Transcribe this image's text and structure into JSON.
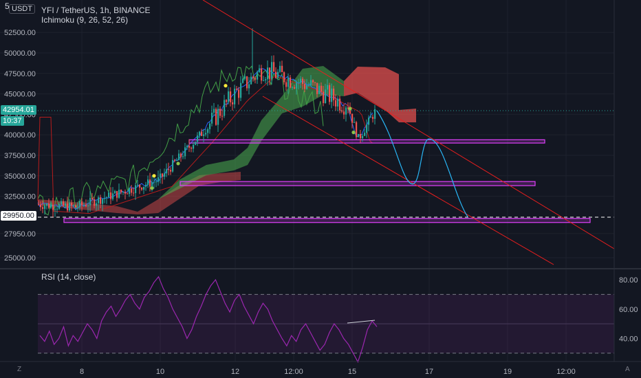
{
  "header": {
    "currency_button": "USDT",
    "symbol_title": "YFI / TetherUS, 1h, BINANCE",
    "indicator": "Ichimoku (9, 26, 52, 26)",
    "price_scale_top": "5"
  },
  "rsi": {
    "title": "RSI (14, close)",
    "levels": [
      "80.00",
      "60.00",
      "40.00"
    ],
    "upper_band": 70,
    "lower_band": 30
  },
  "price_axis": {
    "ticks": [
      "52500.00",
      "50000.00",
      "47500.00",
      "45000.00",
      "42500.00",
      "40000.00",
      "37500.00",
      "35000.00",
      "32500.00",
      "27950.00",
      "25000.00"
    ]
  },
  "time_axis": {
    "ticks": [
      "8",
      "10",
      "12",
      "12:00",
      "15",
      "17",
      "19",
      "12:00"
    ]
  },
  "last_price": {
    "price": "42954.01",
    "countdown": "10:37",
    "color": "#26a69a"
  },
  "alert_line": {
    "price": "29950.00",
    "value": 29950
  },
  "corner_buttons": {
    "left": "Z",
    "right": "A"
  },
  "colors": {
    "up": "#26a69a",
    "down": "#ef5350",
    "conversion": "#2962ff",
    "base": "#b71c1c",
    "lagging": "#43a047",
    "cloud_bull": "#4caf50",
    "cloud_bear": "#ef5350",
    "rsi": "#9c27b0",
    "rect": "#e040fb",
    "projection": "#29b6f6",
    "channel": "#e91e1e"
  },
  "chart_data": [
    {
      "type": "candlestick",
      "title": "YFI / TetherUS, 1h, BINANCE",
      "ylim": [
        24000,
        54500
      ],
      "key_points": {
        "x": [
          "8",
          "9",
          "10",
          "11",
          "12",
          "12:00",
          "14",
          "15",
          "15",
          "15"
        ],
        "close": [
          31500,
          31200,
          34500,
          40000,
          45000,
          48000,
          46000,
          43500,
          39500,
          42954
        ]
      },
      "channel_lines": "two parallel descending red lines",
      "support_zones": [
        {
          "low": 39000,
          "high": 39400
        },
        {
          "low": 33800,
          "high": 34300
        },
        {
          "low": 29300,
          "high": 29800
        }
      ],
      "projection": {
        "x": [
          "15",
          "17",
          "17",
          "18"
        ],
        "y": [
          42954,
          34000,
          39500,
          30000
        ]
      },
      "alert_price": 29950
    },
    {
      "type": "line",
      "title": "RSI (14, close)",
      "ylim": [
        20,
        90
      ],
      "levels": [
        80,
        60,
        40
      ],
      "bands": [
        70,
        30
      ],
      "series": [
        {
          "values": [
            42,
            38,
            45,
            36,
            40,
            48,
            35,
            42,
            38,
            44,
            50,
            46,
            40,
            52,
            58,
            62,
            55,
            60,
            66,
            70,
            64,
            60,
            68,
            72,
            78,
            82,
            74,
            68,
            60,
            54,
            48,
            40,
            46,
            55,
            62,
            70,
            76,
            80,
            72,
            64,
            58,
            66,
            70,
            62,
            56,
            50,
            58,
            64,
            60,
            52,
            46,
            40,
            35,
            42,
            38,
            46,
            50,
            44,
            38,
            32,
            36,
            44,
            50,
            46,
            40,
            36,
            30,
            24,
            34,
            46,
            52,
            48
          ]
        }
      ]
    }
  ]
}
